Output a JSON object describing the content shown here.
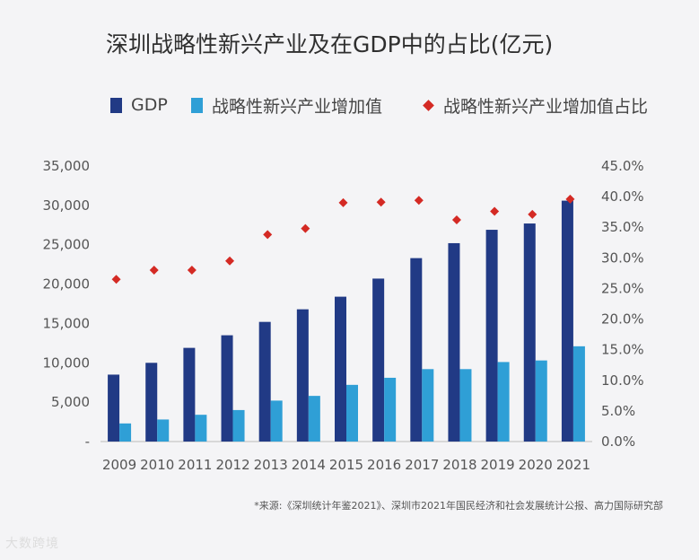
{
  "title": "深圳战略性新兴产业及在GDP中的占比(亿元)",
  "legend": [
    {
      "label": "GDP",
      "color": "#213a85",
      "marker": "square"
    },
    {
      "label": "战略性新兴产业增加值",
      "color": "#2f9fd6",
      "marker": "square"
    },
    {
      "label": "战略性新兴产业增加值占比",
      "color": "#d42a24",
      "marker": "diamond"
    }
  ],
  "source": "*来源:《深圳统计年鉴2021》、深圳市2021年国民经济和社会发展统计公报、高力国际研究部",
  "watermark": "大数跨境",
  "chart_data": {
    "type": "bar",
    "title": "深圳战略性新兴产业及在GDP中的占比(亿元)",
    "categories": [
      "2009",
      "2010",
      "2011",
      "2012",
      "2013",
      "2014",
      "2015",
      "2016",
      "2017",
      "2018",
      "2019",
      "2020",
      "2021"
    ],
    "series": [
      {
        "name": "GDP",
        "type": "bar",
        "axis": "left",
        "color": "#213a85",
        "values": [
          8500,
          10000,
          11900,
          13500,
          15200,
          16800,
          18400,
          20700,
          23300,
          25200,
          26900,
          27700,
          30600
        ]
      },
      {
        "name": "战略性新兴产业增加值",
        "type": "bar",
        "axis": "left",
        "color": "#2f9fd6",
        "values": [
          2300,
          2800,
          3400,
          4000,
          5200,
          5800,
          7200,
          8100,
          9200,
          9200,
          10100,
          10300,
          12100
        ]
      },
      {
        "name": "战略性新兴产业增加值占比",
        "type": "scatter",
        "axis": "right",
        "color": "#d42a24",
        "values": [
          26.5,
          28.0,
          28.0,
          29.5,
          33.8,
          34.8,
          39.0,
          39.1,
          39.4,
          36.2,
          37.6,
          37.1,
          39.6
        ]
      }
    ],
    "y_left": {
      "ticks": [
        "-",
        "5,000",
        "10,000",
        "15,000",
        "20,000",
        "25,000",
        "30,000",
        "35,000"
      ],
      "ylim": [
        0,
        35000
      ]
    },
    "y_right": {
      "ticks": [
        "0.0%",
        "5.0%",
        "10.0%",
        "15.0%",
        "20.0%",
        "25.0%",
        "30.0%",
        "35.0%",
        "40.0%",
        "45.0%"
      ],
      "ylim": [
        0,
        45
      ]
    },
    "grid": false,
    "legend_position": "top"
  }
}
